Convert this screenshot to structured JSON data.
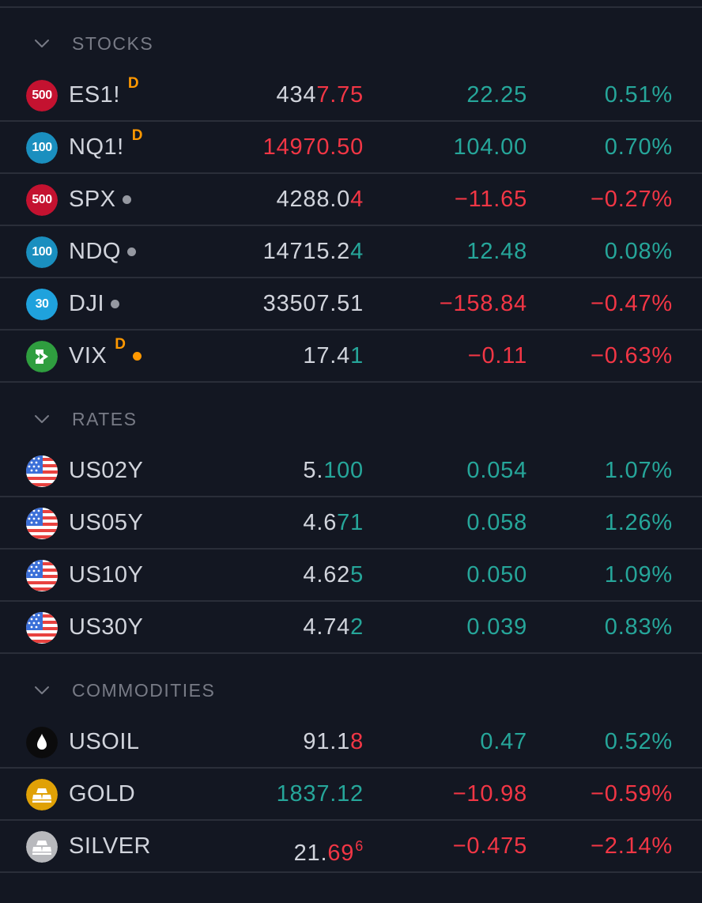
{
  "colors": {
    "background": "#131722",
    "positive": "#26a69a",
    "negative": "#f23645",
    "text": "#d1d4dc",
    "muted": "#787b86",
    "divider": "#2a2e39",
    "delayed": "#ff9800"
  },
  "sections": [
    {
      "title": "STOCKS",
      "rows": [
        {
          "symbol": "ES1!",
          "logo": {
            "type": "badge",
            "text": "500",
            "color": "#c41230",
            "icon": "sp500-icon"
          },
          "delayed": "D",
          "status": null,
          "last": {
            "base": "4347.75",
            "parts": [
              {
                "t": "434",
                "c": "neutral"
              },
              {
                "t": "7.75",
                "c": "neg"
              }
            ]
          },
          "change": "22.25",
          "change_dir": "pos",
          "change_pct": "0.51%",
          "pct_dir": "pos"
        },
        {
          "symbol": "NQ1!",
          "logo": {
            "type": "badge",
            "text": "100",
            "color": "#1a8fbf",
            "icon": "nasdaq100-icon"
          },
          "delayed": "D",
          "status": null,
          "last": {
            "base": "14970.50",
            "parts": [
              {
                "t": "14970.50",
                "c": "neg"
              }
            ]
          },
          "change": "104.00",
          "change_dir": "pos",
          "change_pct": "0.70%",
          "pct_dir": "pos"
        },
        {
          "symbol": "SPX",
          "logo": {
            "type": "badge",
            "text": "500",
            "color": "#c41230",
            "icon": "sp500-icon"
          },
          "delayed": null,
          "status": "gray",
          "last": {
            "base": "4288.04",
            "parts": [
              {
                "t": "4288.0",
                "c": "neutral"
              },
              {
                "t": "4",
                "c": "neg"
              }
            ]
          },
          "change": "−11.65",
          "change_dir": "neg",
          "change_pct": "−0.27%",
          "pct_dir": "neg"
        },
        {
          "symbol": "NDQ",
          "logo": {
            "type": "badge",
            "text": "100",
            "color": "#1a8fbf",
            "icon": "nasdaq100-icon"
          },
          "delayed": null,
          "status": "gray",
          "last": {
            "base": "14715.24",
            "parts": [
              {
                "t": "14715.2",
                "c": "neutral"
              },
              {
                "t": "4",
                "c": "pos"
              }
            ]
          },
          "change": "12.48",
          "change_dir": "pos",
          "change_pct": "0.08%",
          "pct_dir": "pos"
        },
        {
          "symbol": "DJI",
          "logo": {
            "type": "badge",
            "text": "30",
            "color": "#1fa2dd",
            "icon": "dow30-icon"
          },
          "delayed": null,
          "status": "gray",
          "last": {
            "base": "33507.51",
            "parts": [
              {
                "t": "33507.51",
                "c": "neutral"
              }
            ]
          },
          "change": "−158.84",
          "change_dir": "neg",
          "change_pct": "−0.47%",
          "pct_dir": "neg"
        },
        {
          "symbol": "VIX",
          "logo": {
            "type": "vix",
            "color": "#2f9e3f",
            "icon": "vix-icon"
          },
          "delayed": "D",
          "status": "orange",
          "last": {
            "base": "17.41",
            "parts": [
              {
                "t": "17.4",
                "c": "neutral"
              },
              {
                "t": "1",
                "c": "pos"
              }
            ]
          },
          "change": "−0.11",
          "change_dir": "neg",
          "change_pct": "−0.63%",
          "pct_dir": "neg"
        }
      ]
    },
    {
      "title": "RATES",
      "rows": [
        {
          "symbol": "US02Y",
          "logo": {
            "type": "flag",
            "icon": "us-flag-icon"
          },
          "delayed": null,
          "status": null,
          "last": {
            "base": "5.100",
            "parts": [
              {
                "t": "5.",
                "c": "neutral"
              },
              {
                "t": "100",
                "c": "pos"
              }
            ]
          },
          "change": "0.054",
          "change_dir": "pos",
          "change_pct": "1.07%",
          "pct_dir": "pos"
        },
        {
          "symbol": "US05Y",
          "logo": {
            "type": "flag",
            "icon": "us-flag-icon"
          },
          "delayed": null,
          "status": null,
          "last": {
            "base": "4.671",
            "parts": [
              {
                "t": "4.6",
                "c": "neutral"
              },
              {
                "t": "71",
                "c": "pos"
              }
            ]
          },
          "change": "0.058",
          "change_dir": "pos",
          "change_pct": "1.26%",
          "pct_dir": "pos"
        },
        {
          "symbol": "US10Y",
          "logo": {
            "type": "flag",
            "icon": "us-flag-icon"
          },
          "delayed": null,
          "status": null,
          "last": {
            "base": "4.625",
            "parts": [
              {
                "t": "4.62",
                "c": "neutral"
              },
              {
                "t": "5",
                "c": "pos"
              }
            ]
          },
          "change": "0.050",
          "change_dir": "pos",
          "change_pct": "1.09%",
          "pct_dir": "pos"
        },
        {
          "symbol": "US30Y",
          "logo": {
            "type": "flag",
            "icon": "us-flag-icon"
          },
          "delayed": null,
          "status": null,
          "last": {
            "base": "4.742",
            "parts": [
              {
                "t": "4.74",
                "c": "neutral"
              },
              {
                "t": "2",
                "c": "pos"
              }
            ]
          },
          "change": "0.039",
          "change_dir": "pos",
          "change_pct": "0.83%",
          "pct_dir": "pos"
        }
      ]
    },
    {
      "title": "COMMODITIES",
      "rows": [
        {
          "symbol": "USOIL",
          "logo": {
            "type": "oil",
            "icon": "oil-drop-icon"
          },
          "delayed": null,
          "status": null,
          "last": {
            "base": "91.18",
            "parts": [
              {
                "t": "91.1",
                "c": "neutral"
              },
              {
                "t": "8",
                "c": "neg"
              }
            ]
          },
          "change": "0.47",
          "change_dir": "pos",
          "change_pct": "0.52%",
          "pct_dir": "pos"
        },
        {
          "symbol": "GOLD",
          "logo": {
            "type": "gold",
            "color": "#e0a106",
            "icon": "gold-bars-icon"
          },
          "delayed": null,
          "status": null,
          "last": {
            "base": "1837.12",
            "parts": [
              {
                "t": "1837.12",
                "c": "pos"
              }
            ]
          },
          "change": "−10.98",
          "change_dir": "neg",
          "change_pct": "−0.59%",
          "pct_dir": "neg"
        },
        {
          "symbol": "SILVER",
          "logo": {
            "type": "silver",
            "color": "#b8b9bd",
            "icon": "silver-bars-icon"
          },
          "delayed": null,
          "status": null,
          "last": {
            "base": "21.696",
            "parts": [
              {
                "t": "21.",
                "c": "neutral"
              },
              {
                "t": "69",
                "c": "neg"
              },
              {
                "t": "6",
                "c": "neg",
                "sup": true
              }
            ]
          },
          "change": "−0.475",
          "change_dir": "neg",
          "change_pct": "−2.14%",
          "pct_dir": "neg"
        }
      ]
    }
  ]
}
